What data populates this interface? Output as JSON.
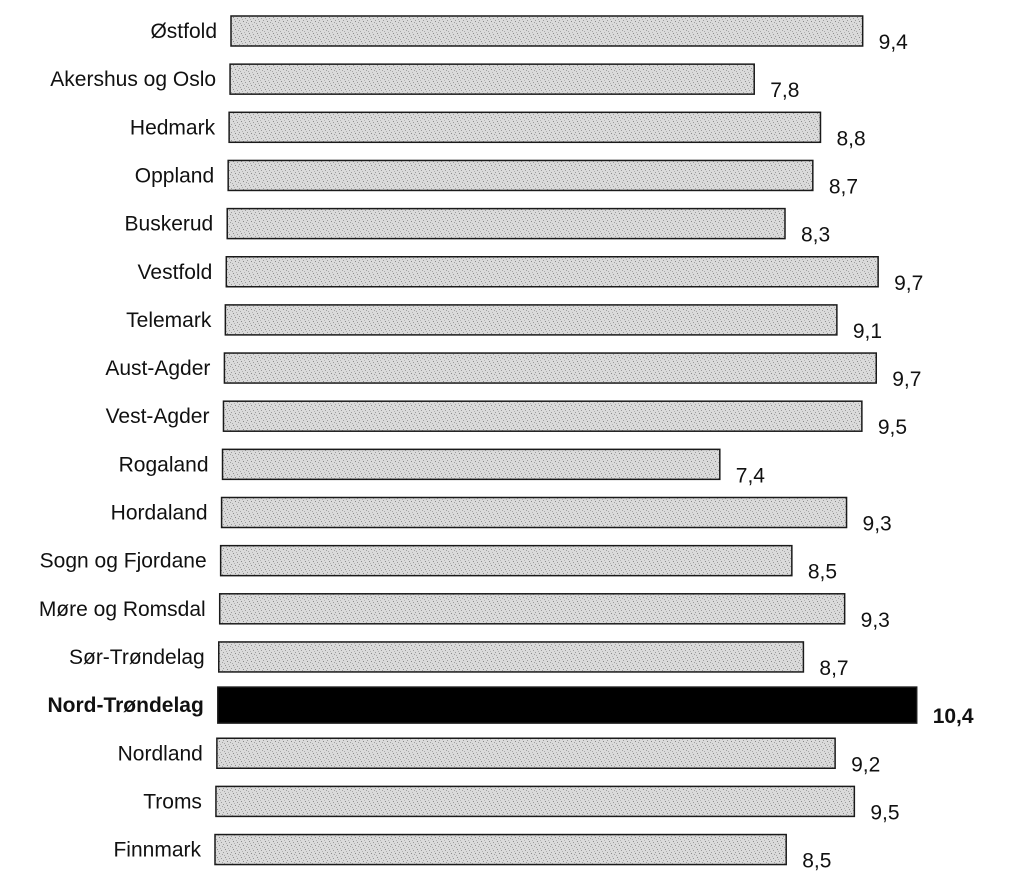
{
  "chart_data": {
    "type": "bar",
    "orientation": "horizontal",
    "title": "",
    "xlabel": "",
    "ylabel": "",
    "categories": [
      "Østfold",
      "Akershus og Oslo",
      "Hedmark",
      "Oppland",
      "Buskerud",
      "Vestfold",
      "Telemark",
      "Aust-Agder",
      "Vest-Agder",
      "Rogaland",
      "Hordaland",
      "Sogn og Fjordane",
      "Møre og Romsdal",
      "Sør-Trøndelag",
      "Nord-Trøndelag",
      "Nordland",
      "Troms",
      "Finnmark"
    ],
    "values": [
      9.4,
      7.8,
      8.8,
      8.7,
      8.3,
      9.7,
      9.1,
      9.7,
      9.5,
      7.4,
      9.3,
      8.5,
      9.3,
      8.7,
      10.4,
      9.2,
      9.5,
      8.5
    ],
    "value_labels": [
      "9,4",
      "7,8",
      "8,8",
      "8,7",
      "8,3",
      "9,7",
      "9,1",
      "9,7",
      "9,5",
      "7,4",
      "9,3",
      "8,5",
      "9,3",
      "8,7",
      "10,4",
      "9,2",
      "9,5",
      "8,5"
    ],
    "highlight": "Nord-Trøndelag",
    "xlim": [
      0,
      10.4
    ],
    "grid": false,
    "colors": {
      "bar_fill": "#d6d6d6",
      "bar_stroke": "#1a1a1a",
      "highlight_fill": "#000000",
      "text": "#111111"
    }
  }
}
